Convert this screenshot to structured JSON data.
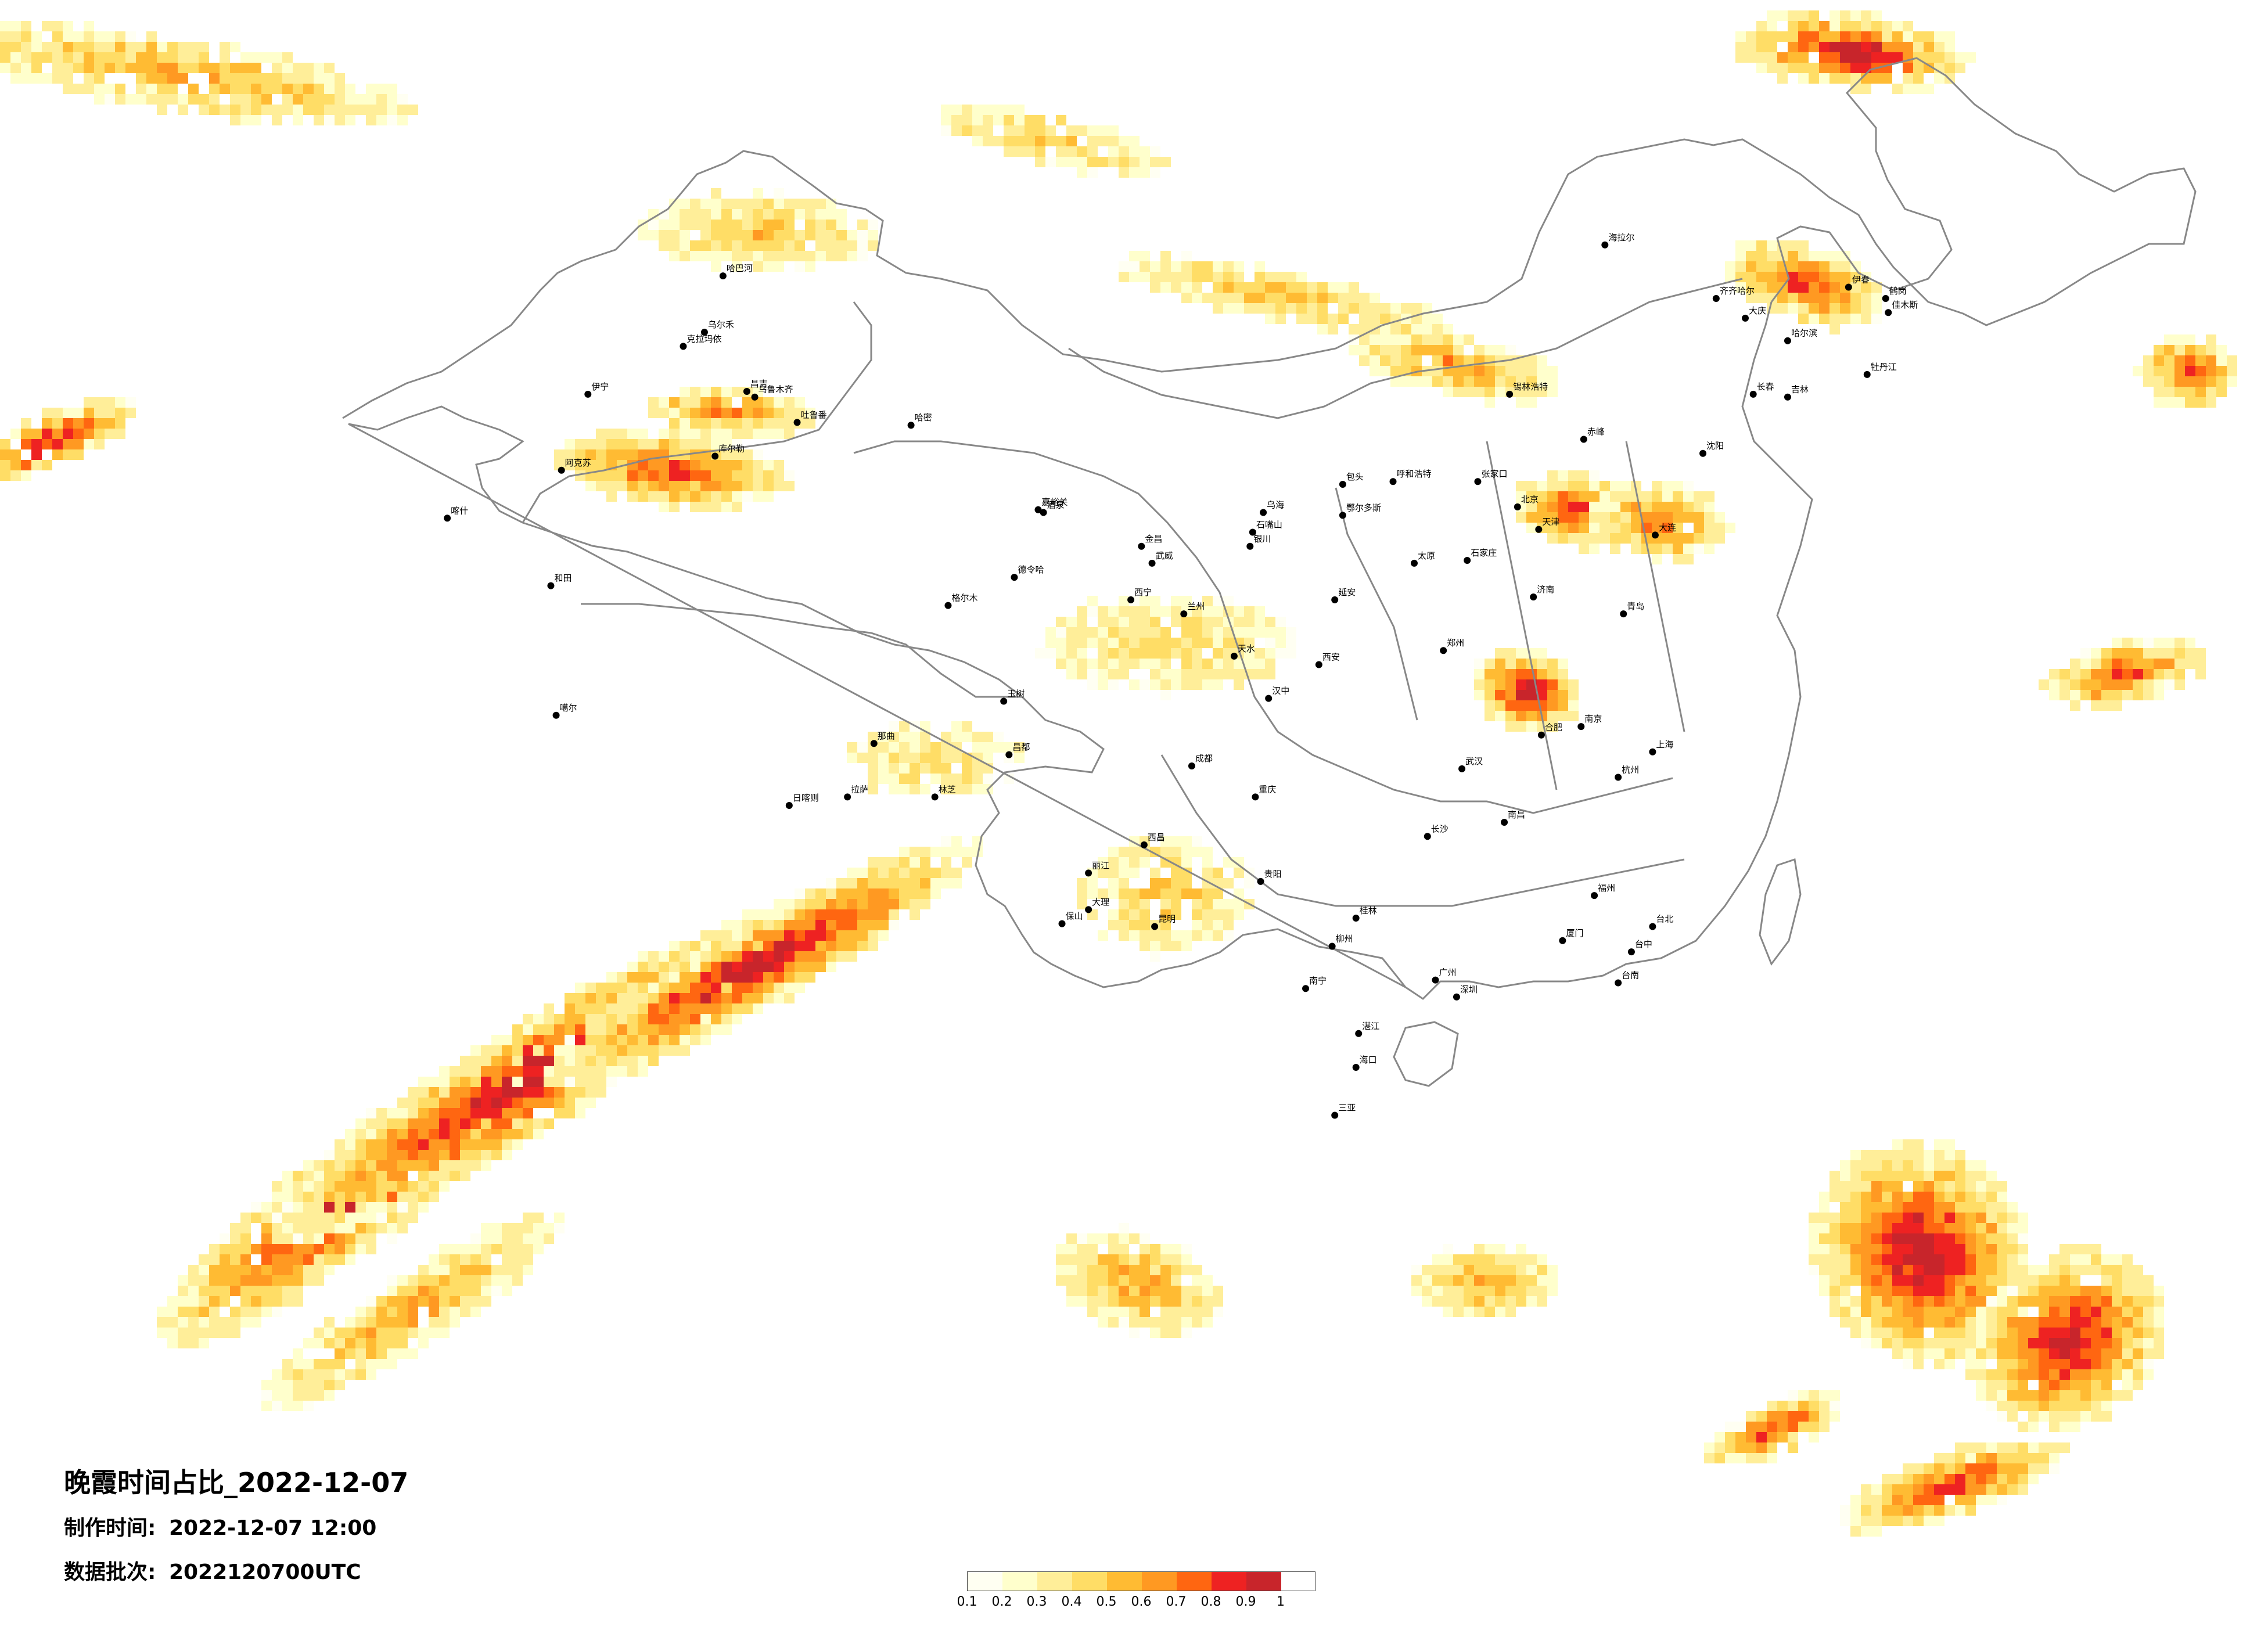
{
  "map": {
    "title": "晚霞时间占比_2022-12-07",
    "made_time_label": "制作时间:",
    "made_time_value": "2022-12-07 12:00",
    "batch_label": "数据批次:",
    "batch_value": "2022120700UTC"
  },
  "legend": {
    "ticks": [
      "0.1",
      "0.2",
      "0.3",
      "0.4",
      "0.5",
      "0.6",
      "0.7",
      "0.8",
      "0.9",
      "1"
    ],
    "colors": [
      "#fffff2",
      "#ffffcc",
      "#ffee99",
      "#ffdd66",
      "#ffbb33",
      "#ff9922",
      "#ff6611",
      "#ee2222",
      "#c8252b"
    ]
  },
  "cities": [
    {
      "name": "哈巴河",
      "lon": 86.4,
      "lat": 48.1
    },
    {
      "name": "克拉玛依",
      "lon": 84.9,
      "lat": 45.6
    },
    {
      "name": "伊宁",
      "lon": 81.3,
      "lat": 43.9
    },
    {
      "name": "昌吉",
      "lon": 87.3,
      "lat": 44.0
    },
    {
      "name": "乌鲁木齐",
      "lon": 87.6,
      "lat": 43.8
    },
    {
      "name": "吐鲁番",
      "lon": 89.2,
      "lat": 42.9
    },
    {
      "name": "哈密",
      "lon": 93.5,
      "lat": 42.8
    },
    {
      "name": "库尔勒",
      "lon": 86.1,
      "lat": 41.7
    },
    {
      "name": "阿克苏",
      "lon": 80.3,
      "lat": 41.2
    },
    {
      "name": "喀什",
      "lon": 75.99,
      "lat": 39.5
    },
    {
      "name": "和田",
      "lon": 79.9,
      "lat": 37.1
    },
    {
      "name": "嘉峪关",
      "lon": 98.3,
      "lat": 39.8
    },
    {
      "name": "酒泉",
      "lon": 98.5,
      "lat": 39.7
    },
    {
      "name": "德令哈",
      "lon": 97.4,
      "lat": 37.4
    },
    {
      "name": "金昌",
      "lon": 102.2,
      "lat": 38.5
    },
    {
      "name": "武威",
      "lon": 102.6,
      "lat": 37.9
    },
    {
      "name": "银川",
      "lon": 106.3,
      "lat": 38.5
    },
    {
      "name": "石嘴山",
      "lon": 106.4,
      "lat": 39.0
    },
    {
      "name": "西宁",
      "lon": 101.8,
      "lat": 36.6
    },
    {
      "name": "兰州",
      "lon": 103.8,
      "lat": 36.1
    },
    {
      "name": "呼和浩特",
      "lon": 111.7,
      "lat": 40.8
    },
    {
      "name": "包头",
      "lon": 109.8,
      "lat": 40.7
    },
    {
      "name": "鄂尔多斯",
      "lon": 109.8,
      "lat": 39.6
    },
    {
      "name": "乌海",
      "lon": 106.8,
      "lat": 39.7
    },
    {
      "name": "张家口",
      "lon": 114.9,
      "lat": 40.8
    },
    {
      "name": "北京",
      "lon": 116.4,
      "lat": 39.9
    },
    {
      "name": "天津",
      "lon": 117.2,
      "lat": 39.1
    },
    {
      "name": "石家庄",
      "lon": 114.5,
      "lat": 38.0
    },
    {
      "name": "太原",
      "lon": 112.5,
      "lat": 37.9
    },
    {
      "name": "济南",
      "lon": 117.0,
      "lat": 36.7
    },
    {
      "name": "青岛",
      "lon": 120.4,
      "lat": 36.1
    },
    {
      "name": "郑州",
      "lon": 113.6,
      "lat": 34.8
    },
    {
      "name": "西安",
      "lon": 108.9,
      "lat": 34.3
    },
    {
      "name": "延安",
      "lon": 109.5,
      "lat": 36.6
    },
    {
      "name": "天水",
      "lon": 105.7,
      "lat": 34.6
    },
    {
      "name": "汉中",
      "lon": 107.0,
      "lat": 33.1
    },
    {
      "name": "成都",
      "lon": 104.1,
      "lat": 30.7
    },
    {
      "name": "重庆",
      "lon": 106.5,
      "lat": 29.6
    },
    {
      "name": "贵阳",
      "lon": 106.7,
      "lat": 26.6
    },
    {
      "name": "昆明",
      "lon": 102.7,
      "lat": 25.0
    },
    {
      "name": "大理",
      "lon": 100.2,
      "lat": 25.6
    },
    {
      "name": "保山",
      "lon": 99.2,
      "lat": 25.1
    },
    {
      "name": "丽江",
      "lon": 100.2,
      "lat": 26.9
    },
    {
      "name": "西昌",
      "lon": 102.3,
      "lat": 27.9
    },
    {
      "name": "南宁",
      "lon": 108.4,
      "lat": 22.8
    },
    {
      "name": "桂林",
      "lon": 110.3,
      "lat": 25.3
    },
    {
      "name": "柳州",
      "lon": 109.4,
      "lat": 24.3
    },
    {
      "name": "广州",
      "lon": 113.3,
      "lat": 23.1
    },
    {
      "name": "深圳",
      "lon": 114.1,
      "lat": 22.5
    },
    {
      "name": "湛江",
      "lon": 110.4,
      "lat": 21.2
    },
    {
      "name": "海口",
      "lon": 110.3,
      "lat": 20.0
    },
    {
      "name": "三亚",
      "lon": 109.5,
      "lat": 18.3
    },
    {
      "name": "长沙",
      "lon": 113.0,
      "lat": 28.2
    },
    {
      "name": "武汉",
      "lon": 114.3,
      "lat": 30.6
    },
    {
      "name": "南昌",
      "lon": 115.9,
      "lat": 28.7
    },
    {
      "name": "福州",
      "lon": 119.3,
      "lat": 26.1
    },
    {
      "name": "厦门",
      "lon": 118.1,
      "lat": 24.5
    },
    {
      "name": "杭州",
      "lon": 120.2,
      "lat": 30.3
    },
    {
      "name": "上海",
      "lon": 121.5,
      "lat": 31.2
    },
    {
      "name": "南京",
      "lon": 118.8,
      "lat": 32.1
    },
    {
      "name": "合肥",
      "lon": 117.3,
      "lat": 31.8
    },
    {
      "name": "台北",
      "lon": 121.5,
      "lat": 25.0
    },
    {
      "name": "台中",
      "lon": 120.7,
      "lat": 24.1
    },
    {
      "name": "台南",
      "lon": 120.2,
      "lat": 23.0
    },
    {
      "name": "沈阳",
      "lon": 123.4,
      "lat": 41.8
    },
    {
      "name": "大连",
      "lon": 121.6,
      "lat": 38.9
    },
    {
      "name": "长春",
      "lon": 125.3,
      "lat": 43.9
    },
    {
      "name": "吉林",
      "lon": 126.6,
      "lat": 43.8
    },
    {
      "name": "哈尔滨",
      "lon": 126.6,
      "lat": 45.8
    },
    {
      "name": "齐齐哈尔",
      "lon": 123.9,
      "lat": 47.3
    },
    {
      "name": "大庆",
      "lon": 125.0,
      "lat": 46.6
    },
    {
      "name": "牡丹江",
      "lon": 129.6,
      "lat": 44.6
    },
    {
      "name": "佳木斯",
      "lon": 130.4,
      "lat": 46.8
    },
    {
      "name": "鹤岗",
      "lon": 130.3,
      "lat": 47.3
    },
    {
      "name": "伊春",
      "lon": 128.9,
      "lat": 47.7
    },
    {
      "name": "海拉尔",
      "lon": 119.7,
      "lat": 49.2
    },
    {
      "name": "锡林浩特",
      "lon": 116.1,
      "lat": 43.9
    },
    {
      "name": "赤峰",
      "lon": 118.9,
      "lat": 42.3
    },
    {
      "name": "拉萨",
      "lon": 91.1,
      "lat": 29.6
    },
    {
      "name": "日喀则",
      "lon": 88.9,
      "lat": 29.3
    },
    {
      "name": "林芝",
      "lon": 94.4,
      "lat": 29.6
    },
    {
      "name": "那曲",
      "lon": 92.1,
      "lat": 31.5
    },
    {
      "name": "昌都",
      "lon": 97.2,
      "lat": 31.1
    },
    {
      "name": "格尔木",
      "lon": 94.9,
      "lat": 36.4
    },
    {
      "name": "玉树",
      "lon": 97.0,
      "lat": 33.0
    },
    {
      "name": "噶尔",
      "lon": 80.1,
      "lat": 32.5
    },
    {
      "name": "乌尔禾",
      "lon": 85.7,
      "lat": 46.1
    }
  ]
}
